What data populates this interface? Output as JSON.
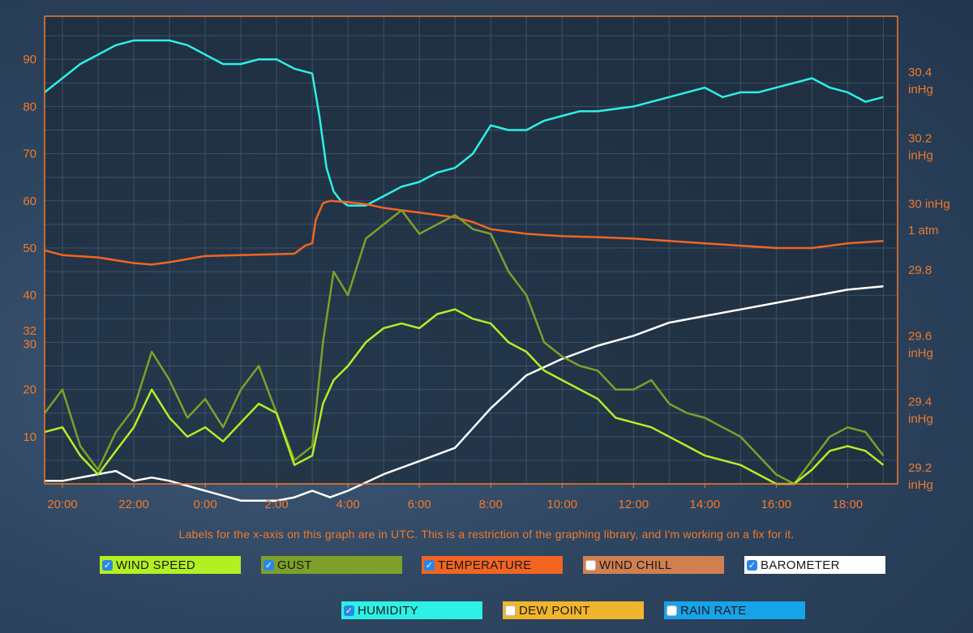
{
  "note": "Labels for the x-axis on this graph are in UTC. This is a restriction of the graphing library, and I'm working on a fix for it.",
  "colors": {
    "axis": "#f07a2c",
    "grid": "#51657c",
    "plot_bg": "#1e2c3c"
  },
  "legend": [
    {
      "label": "WIND SPEED",
      "color": "#b3f022",
      "checked": true,
      "text_color": "#1a1a1a"
    },
    {
      "label": "GUST",
      "color": "#7da02a",
      "checked": true,
      "text_color": "#1a1a1a"
    },
    {
      "label": "TEMPERATURE",
      "color": "#f26521",
      "checked": true,
      "text_color": "#1a1a1a"
    },
    {
      "label": "WIND CHILL",
      "color": "#d08050",
      "checked": false,
      "text_color": "#1a1a1a"
    },
    {
      "label": "BAROMETER",
      "color": "#ffffff",
      "checked": true,
      "text_color": "#1a1a1a"
    },
    {
      "label": "HUMIDITY",
      "color": "#2ef0e6",
      "checked": true,
      "text_color": "#1a1a1a"
    },
    {
      "label": "DEW POINT",
      "color": "#f0b52c",
      "checked": false,
      "text_color": "#1a1a1a"
    },
    {
      "label": "RAIN RATE",
      "color": "#16a3ea",
      "checked": false,
      "text_color": "#1a1a1a"
    }
  ],
  "chart_data": {
    "type": "line",
    "grid": true,
    "x_label_unit": "hours (UTC)",
    "x_range": [
      19.5,
      19.4
    ],
    "x_ticks": [
      "20:00",
      "22:00",
      "0:00",
      "2:00",
      "4:00",
      "6:00",
      "8:00",
      "10:00",
      "12:00",
      "14:00",
      "16:00",
      "18:00"
    ],
    "y_left": {
      "ticks": [
        "10",
        "20",
        "30",
        "32",
        "40",
        "50",
        "60",
        "70",
        "80",
        "90"
      ],
      "range": [
        0,
        99
      ]
    },
    "y_right": {
      "ticks": [
        {
          "label": "29.2",
          "unit": "inHg",
          "value": 29.2
        },
        {
          "label": "29.4",
          "unit": "inHg",
          "value": 29.4
        },
        {
          "label": "29.6",
          "unit": "inHg",
          "value": 29.6
        },
        {
          "label": "29.8",
          "unit": "",
          "value": 29.8
        },
        {
          "label": "1 atm",
          "unit": "",
          "value": 29.92
        },
        {
          "label": "30 inHg",
          "unit": "",
          "value": 30.0
        },
        {
          "label": "30.2",
          "unit": "inHg",
          "value": 30.2
        },
        {
          "label": "30.4",
          "unit": "inHg",
          "value": 30.4
        }
      ],
      "range": [
        29.1,
        30.5
      ]
    },
    "series": [
      {
        "name": "HUMIDITY",
        "axis": "left",
        "color": "#2ef0e6",
        "x": [
          19.5,
          20.0,
          20.5,
          21.0,
          21.5,
          22.0,
          22.5,
          23.0,
          23.5,
          24.0,
          24.5,
          25.0,
          25.5,
          26.0,
          26.5,
          27.0,
          27.2,
          27.4,
          27.6,
          27.8,
          28.0,
          28.5,
          29.0,
          29.5,
          30.0,
          30.5,
          31.0,
          31.5,
          32.0,
          32.5,
          33.0,
          33.5,
          34.0,
          34.5,
          35.0,
          36.0,
          37.0,
          38.0,
          38.5,
          39.0,
          39.5,
          40.0,
          40.5,
          41.0,
          41.5,
          42.0,
          42.5,
          43.0
        ],
        "values": [
          83,
          86,
          89,
          91,
          93,
          94,
          94,
          94,
          93,
          91,
          89,
          89,
          90,
          90,
          88,
          87,
          78,
          67,
          62,
          60,
          59,
          59,
          61,
          63,
          64,
          66,
          67,
          70,
          76,
          75,
          75,
          77,
          78,
          79,
          79,
          80,
          82,
          84,
          82,
          83,
          83,
          84,
          85,
          86,
          84,
          83,
          81,
          82
        ]
      },
      {
        "name": "TEMPERATURE",
        "axis": "left",
        "color": "#f26521",
        "x": [
          19.5,
          20.0,
          21.0,
          22.0,
          22.5,
          23.0,
          24.0,
          25.0,
          26.0,
          26.5,
          26.8,
          27.0,
          27.1,
          27.3,
          27.5,
          28.0,
          28.5,
          29.0,
          30.0,
          31.0,
          31.5,
          32.0,
          33.0,
          34.0,
          35.0,
          36.0,
          37.0,
          38.0,
          39.0,
          40.0,
          41.0,
          42.0,
          43.0
        ],
        "values": [
          49.5,
          48.5,
          48.0,
          46.8,
          46.5,
          47.0,
          48.3,
          48.5,
          48.7,
          48.8,
          50.5,
          51,
          56,
          59.5,
          60,
          59.7,
          59.3,
          58.5,
          57.5,
          56.5,
          55.5,
          54,
          53,
          52.5,
          52.3,
          52,
          51.5,
          51,
          50.5,
          50,
          50,
          51,
          51.5
        ]
      },
      {
        "name": "BAROMETER",
        "axis": "right",
        "color": "#ffffff",
        "x": [
          19.5,
          20.0,
          21.0,
          21.5,
          22.0,
          22.5,
          23.0,
          24.0,
          25.0,
          25.5,
          26.0,
          26.5,
          27.0,
          27.5,
          28.0,
          29.0,
          30.0,
          31.0,
          32.0,
          33.0,
          34.0,
          35.0,
          36.0,
          37.0,
          38.0,
          39.0,
          40.0,
          41.0,
          42.0,
          43.0
        ],
        "values": [
          29.16,
          29.16,
          29.18,
          29.19,
          29.16,
          29.17,
          29.16,
          29.13,
          29.1,
          29.1,
          29.1,
          29.11,
          29.13,
          29.11,
          29.13,
          29.18,
          29.22,
          29.26,
          29.38,
          29.48,
          29.53,
          29.57,
          29.6,
          29.64,
          29.66,
          29.68,
          29.7,
          29.72,
          29.74,
          29.75
        ]
      },
      {
        "name": "GUST",
        "axis": "left",
        "color": "#7da02a",
        "x": [
          19.5,
          20.0,
          20.5,
          21.0,
          21.5,
          22.0,
          22.5,
          23.0,
          23.5,
          24.0,
          24.5,
          25.0,
          25.5,
          26.0,
          26.5,
          27.0,
          27.3,
          27.6,
          28.0,
          28.5,
          29.0,
          29.5,
          30.0,
          30.5,
          31.0,
          31.5,
          32.0,
          32.5,
          33.0,
          33.5,
          34.0,
          34.5,
          35.0,
          35.5,
          36.0,
          36.5,
          37.0,
          37.5,
          38.0,
          38.5,
          39.0,
          39.5,
          40.0,
          40.5,
          41.0,
          41.5,
          42.0,
          42.5,
          43.0
        ],
        "values": [
          15,
          20,
          8,
          3,
          11,
          16,
          28,
          22,
          14,
          18,
          12,
          20,
          25,
          15,
          5,
          8,
          30,
          45,
          40,
          52,
          55,
          58,
          53,
          55,
          57,
          54,
          53,
          45,
          40,
          30,
          27,
          25,
          24,
          20,
          20,
          22,
          17,
          15,
          14,
          12,
          10,
          6,
          2,
          0,
          5,
          10,
          12,
          11,
          6
        ]
      },
      {
        "name": "WIND SPEED",
        "axis": "left",
        "color": "#b3f022",
        "x": [
          19.5,
          20.0,
          20.5,
          21.0,
          21.5,
          22.0,
          22.5,
          23.0,
          23.5,
          24.0,
          24.5,
          25.0,
          25.5,
          26.0,
          26.5,
          27.0,
          27.3,
          27.6,
          28.0,
          28.5,
          29.0,
          29.5,
          30.0,
          30.5,
          31.0,
          31.5,
          32.0,
          32.5,
          33.0,
          33.5,
          34.0,
          34.5,
          35.0,
          35.5,
          36.0,
          36.5,
          37.0,
          37.5,
          38.0,
          38.5,
          39.0,
          39.5,
          40.0,
          40.5,
          41.0,
          41.5,
          42.0,
          42.5,
          43.0
        ],
        "values": [
          11,
          12,
          6,
          2,
          7,
          12,
          20,
          14,
          10,
          12,
          9,
          13,
          17,
          15,
          4,
          6,
          17,
          22,
          25,
          30,
          33,
          34,
          33,
          36,
          37,
          35,
          34,
          30,
          28,
          24,
          22,
          20,
          18,
          14,
          13,
          12,
          10,
          8,
          6,
          5,
          4,
          2,
          0,
          0,
          3,
          7,
          8,
          7,
          4
        ]
      }
    ]
  }
}
